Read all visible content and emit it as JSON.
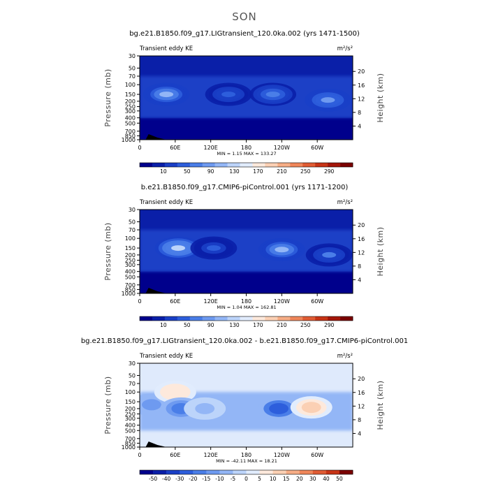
{
  "figure": {
    "title": "SON"
  },
  "chart_data": [
    {
      "type": "heatmap",
      "title": "bg.e21.B1850.f09_g17.LIGtransient_120.0ka.002 (yrs 1471-1500)",
      "subtitle": "Transient eddy KE",
      "units": "m²/s²",
      "ylabel": "Pressure (mb)",
      "y2label": "Height (km)",
      "x_ticks": [
        "0",
        "60E",
        "120E",
        "180",
        "120W",
        "60W"
      ],
      "y_ticks": [
        "30",
        "50",
        "70",
        "100",
        "150",
        "200",
        "250",
        "300",
        "400",
        "500",
        "700",
        "850",
        "1000"
      ],
      "y2_ticks": [
        "20",
        "16",
        "12",
        "8",
        "4"
      ],
      "min_max_text": "MIN =     1.15   MAX =  133.27",
      "min": 1.15,
      "max": 133.27,
      "colorbar_labels": [
        "10",
        "50",
        "90",
        "130",
        "170",
        "210",
        "250",
        "290"
      ],
      "colorbar_colors": [
        "#00008c",
        "#0a1fa8",
        "#1a3fc6",
        "#2d5edc",
        "#4a7ee8",
        "#6e9af0",
        "#93b6f6",
        "#bcd4fa",
        "#e1ecfd",
        "#fde9dc",
        "#fbd0b4",
        "#f6ad86",
        "#ef865a",
        "#e05c34",
        "#c73416",
        "#a4160a",
        "#7a0000"
      ],
      "maxima": [
        {
          "lon": 45,
          "p": 150,
          "value": 110
        },
        {
          "lon": 150,
          "p": 150,
          "value": 70
        },
        {
          "lon": 225,
          "p": 150,
          "value": 85
        },
        {
          "lon": 318,
          "p": 190,
          "value": 95
        }
      ]
    },
    {
      "type": "heatmap",
      "title": "b.e21.B1850.f09_g17.CMIP6-piControl.001 (yrs 1171-1200)",
      "subtitle": "Transient eddy KE",
      "units": "m²/s²",
      "ylabel": "Pressure (mb)",
      "y2label": "Height (km)",
      "x_ticks": [
        "0",
        "60E",
        "120E",
        "180",
        "120W",
        "60W"
      ],
      "y_ticks": [
        "30",
        "50",
        "70",
        "100",
        "150",
        "200",
        "250",
        "300",
        "400",
        "500",
        "700",
        "850",
        "1000"
      ],
      "y2_ticks": [
        "20",
        "16",
        "12",
        "8",
        "4"
      ],
      "min_max_text": "MIN =     1.04   MAX =  162.81",
      "min": 1.04,
      "max": 162.81,
      "colorbar_labels": [
        "10",
        "50",
        "90",
        "130",
        "170",
        "210",
        "250",
        "290"
      ],
      "colorbar_colors": [
        "#00008c",
        "#0a1fa8",
        "#1a3fc6",
        "#2d5edc",
        "#4a7ee8",
        "#6e9af0",
        "#93b6f6",
        "#bcd4fa",
        "#e1ecfd",
        "#fde9dc",
        "#fbd0b4",
        "#f6ad86",
        "#ef865a",
        "#e05c34",
        "#c73416",
        "#a4160a",
        "#7a0000"
      ],
      "maxima": [
        {
          "lon": 65,
          "p": 150,
          "value": 130
        },
        {
          "lon": 125,
          "p": 150,
          "value": 60
        },
        {
          "lon": 240,
          "p": 160,
          "value": 110
        },
        {
          "lon": 320,
          "p": 200,
          "value": 75
        }
      ]
    },
    {
      "type": "heatmap",
      "title": "bg.e21.B1850.f09_g17.LIGtransient_120.0ka.002 - b.e21.B1850.f09_g17.CMIP6-piControl.001",
      "subtitle": "Transient eddy KE",
      "units": "m²/s²",
      "ylabel": "Pressure (mb)",
      "y2label": "Height (km)",
      "x_ticks": [
        "0",
        "60E",
        "120E",
        "180",
        "120W",
        "60W"
      ],
      "y_ticks": [
        "30",
        "50",
        "70",
        "100",
        "150",
        "200",
        "250",
        "300",
        "400",
        "500",
        "700",
        "850",
        "1000"
      ],
      "y2_ticks": [
        "20",
        "16",
        "12",
        "8",
        "4"
      ],
      "min_max_text": "MIN =   -42.11   MAX =   18.21",
      "min": -42.11,
      "max": 18.21,
      "colorbar_labels": [
        "-50",
        "-40",
        "-30",
        "-20",
        "-15",
        "-10",
        "-5",
        "0",
        "5",
        "10",
        "15",
        "20",
        "30",
        "40",
        "50"
      ],
      "colorbar_colors": [
        "#00008c",
        "#0a1fa8",
        "#1a3fc6",
        "#2d5edc",
        "#4a7ee8",
        "#6e9af0",
        "#93b6f6",
        "#bcd4fa",
        "#e1ecfd",
        "#fde9dc",
        "#fbd0b4",
        "#f6ad86",
        "#ef865a",
        "#e05c34",
        "#c73416",
        "#7a0000"
      ],
      "anomalies": [
        {
          "lon": 20,
          "p": 170,
          "value": -25
        },
        {
          "lon": 60,
          "p": 100,
          "value": 15
        },
        {
          "lon": 70,
          "p": 200,
          "value": -30
        },
        {
          "lon": 235,
          "p": 200,
          "value": -40
        },
        {
          "lon": 290,
          "p": 190,
          "value": 18
        },
        {
          "lon": 110,
          "p": 200,
          "value": -12
        }
      ]
    }
  ]
}
